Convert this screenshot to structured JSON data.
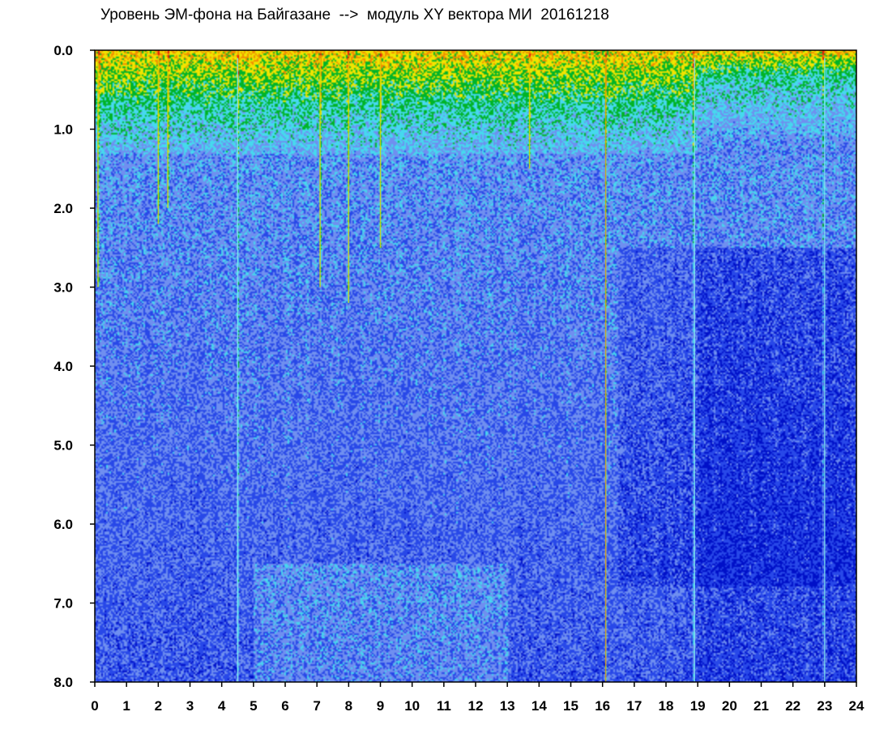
{
  "chart_data": {
    "type": "heatmap",
    "title": "Уровень ЭМ-фона на Байгазане  -->  модуль XY вектора МИ  20161218",
    "xlabel": "",
    "ylabel": "",
    "xlim": [
      0,
      24
    ],
    "ylim": [
      8.0,
      0.0
    ],
    "x_ticks": [
      "0",
      "1",
      "2",
      "3",
      "4",
      "5",
      "6",
      "7",
      "8",
      "9",
      "10",
      "11",
      "12",
      "13",
      "14",
      "15",
      "16",
      "17",
      "18",
      "19",
      "20",
      "21",
      "22",
      "23",
      "24"
    ],
    "y_ticks": [
      "0.0",
      "1.0",
      "2.0",
      "3.0",
      "4.0",
      "5.0",
      "6.0",
      "7.0",
      "8.0"
    ],
    "y_inverted": true,
    "grid": false,
    "legend": "none",
    "colorscale": [
      "#0010c8",
      "#2848e8",
      "#6f8ff0",
      "#46d8ee",
      "#00b428",
      "#f0e400",
      "#f08c00",
      "#e81010"
    ],
    "intensity_bands": [
      {
        "x_start": 0,
        "x_end": 19,
        "high_activity_top": [
          0.0,
          0.7
        ]
      },
      {
        "x_start": 19,
        "x_end": 24,
        "high_activity_top": [
          0.0,
          0.3
        ]
      }
    ],
    "vertical_streaks": [
      {
        "x": 0.1,
        "y_end": 3.0
      },
      {
        "x": 2.0,
        "y_end": 2.2
      },
      {
        "x": 2.3,
        "y_end": 2.0
      },
      {
        "x": 4.5,
        "y_end": 8.0
      },
      {
        "x": 7.1,
        "y_end": 3.0
      },
      {
        "x": 8.0,
        "y_end": 3.2
      },
      {
        "x": 9.0,
        "y_end": 2.5
      },
      {
        "x": 13.7,
        "y_end": 1.5
      },
      {
        "x": 16.1,
        "y_end": 8.0
      },
      {
        "x": 18.9,
        "y_end": 8.0
      },
      {
        "x": 23.0,
        "y_end": 8.0
      }
    ]
  }
}
